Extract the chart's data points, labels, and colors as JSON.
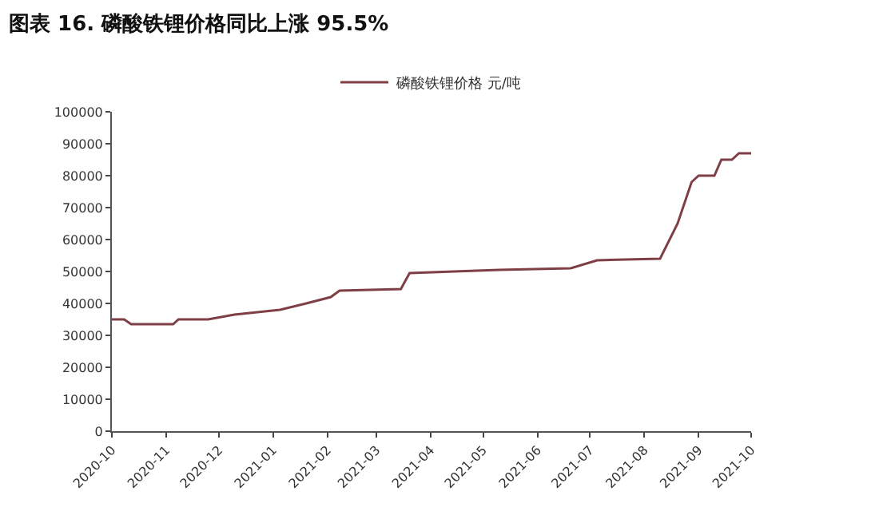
{
  "chart_data": {
    "type": "line",
    "title": "图表 16. 磷酸铁锂价格同比上涨 95.5%",
    "x": [
      "2020-10-01",
      "2020-10-08",
      "2020-10-12",
      "2020-11-05",
      "2020-11-08",
      "2020-11-25",
      "2020-12-10",
      "2021-01-05",
      "2021-01-20",
      "2021-02-03",
      "2021-02-08",
      "2021-03-15",
      "2021-03-20",
      "2021-05-10",
      "2021-06-20",
      "2021-07-05",
      "2021-08-10",
      "2021-08-20",
      "2021-08-28",
      "2021-09-01",
      "2021-09-10",
      "2021-09-14",
      "2021-09-20",
      "2021-09-24",
      "2021-10-01"
    ],
    "series": [
      {
        "name": "磷酸铁锂价格 元/吨",
        "color": "#7f3f46",
        "values": [
          35000,
          35000,
          33500,
          33500,
          35000,
          35000,
          36500,
          38000,
          40000,
          42000,
          44000,
          44500,
          49500,
          50500,
          51000,
          53500,
          54000,
          65000,
          78000,
          80000,
          80000,
          85000,
          85000,
          87000,
          87000
        ]
      }
    ],
    "xlim": [
      "2020-10-01",
      "2021-10-01"
    ],
    "xticks": [
      {
        "value": "2020-10-01",
        "label": "2020-10"
      },
      {
        "value": "2020-11-01",
        "label": "2020-11"
      },
      {
        "value": "2020-12-01",
        "label": "2020-12"
      },
      {
        "value": "2021-01-01",
        "label": "2021-01"
      },
      {
        "value": "2021-02-01",
        "label": "2021-02"
      },
      {
        "value": "2021-03-01",
        "label": "2021-03"
      },
      {
        "value": "2021-04-01",
        "label": "2021-04"
      },
      {
        "value": "2021-05-01",
        "label": "2021-05"
      },
      {
        "value": "2021-06-01",
        "label": "2021-06"
      },
      {
        "value": "2021-07-01",
        "label": "2021-07"
      },
      {
        "value": "2021-08-01",
        "label": "2021-08"
      },
      {
        "value": "2021-09-01",
        "label": "2021-09"
      },
      {
        "value": "2021-10-01",
        "label": "2021-10"
      }
    ],
    "ylim": [
      0,
      100000
    ],
    "yticks": [
      0,
      10000,
      20000,
      30000,
      40000,
      50000,
      60000,
      70000,
      80000,
      90000,
      100000
    ],
    "legend": "top",
    "marker": "none",
    "line_style": "solid"
  }
}
